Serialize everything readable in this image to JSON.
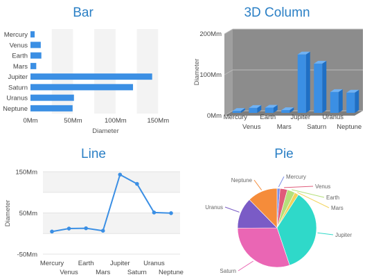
{
  "chart_data": [
    {
      "type": "bar",
      "title": "Bar",
      "categories": [
        "Mercury",
        "Venus",
        "Earth",
        "Mars",
        "Jupiter",
        "Saturn",
        "Uranus",
        "Neptune"
      ],
      "values": [
        4.9,
        12.1,
        12.8,
        6.8,
        143.0,
        120.5,
        51.1,
        49.5
      ],
      "xlabel": "Diameter",
      "ylabel": "",
      "xlim": [
        0,
        175
      ],
      "ticks": [
        "0Mm",
        "50Mm",
        "100Mm",
        "150Mm"
      ],
      "color": "#3b8fe4"
    },
    {
      "type": "bar",
      "title": "3D Column",
      "categories": [
        "Mercury",
        "Venus",
        "Earth",
        "Mars",
        "Jupiter",
        "Saturn",
        "Uranus",
        "Neptune"
      ],
      "values": [
        4.9,
        12.1,
        12.8,
        6.8,
        143.0,
        120.5,
        51.1,
        49.5
      ],
      "xlabel": "",
      "ylabel": "Diameter",
      "ylim": [
        0,
        200
      ],
      "ticks": [
        "0Mm",
        "100Mm",
        "200Mm"
      ],
      "color": "#3b8fe4"
    },
    {
      "type": "line",
      "title": "Line",
      "categories": [
        "Mercury",
        "Venus",
        "Earth",
        "Mars",
        "Jupiter",
        "Saturn",
        "Uranus",
        "Neptune"
      ],
      "values": [
        4.9,
        12.1,
        12.8,
        6.8,
        143.0,
        120.5,
        51.1,
        49.5
      ],
      "xlabel": "",
      "ylabel": "Diameter",
      "ylim": [
        -50,
        150
      ],
      "ticks": [
        "-50Mm",
        "50Mm",
        "150Mm"
      ],
      "color": "#3b8fe4"
    },
    {
      "type": "pie",
      "title": "Pie",
      "categories": [
        "Mercury",
        "Venus",
        "Earth",
        "Mars",
        "Jupiter",
        "Saturn",
        "Uranus",
        "Neptune"
      ],
      "values": [
        4.9,
        12.1,
        12.8,
        6.8,
        143.0,
        120.5,
        51.1,
        49.5
      ],
      "colors": [
        "#7b8ee8",
        "#e05b7a",
        "#b5e07a",
        "#f2d35c",
        "#2fd9c9",
        "#ea66b4",
        "#7a5bc6",
        "#f58c3a"
      ]
    }
  ]
}
